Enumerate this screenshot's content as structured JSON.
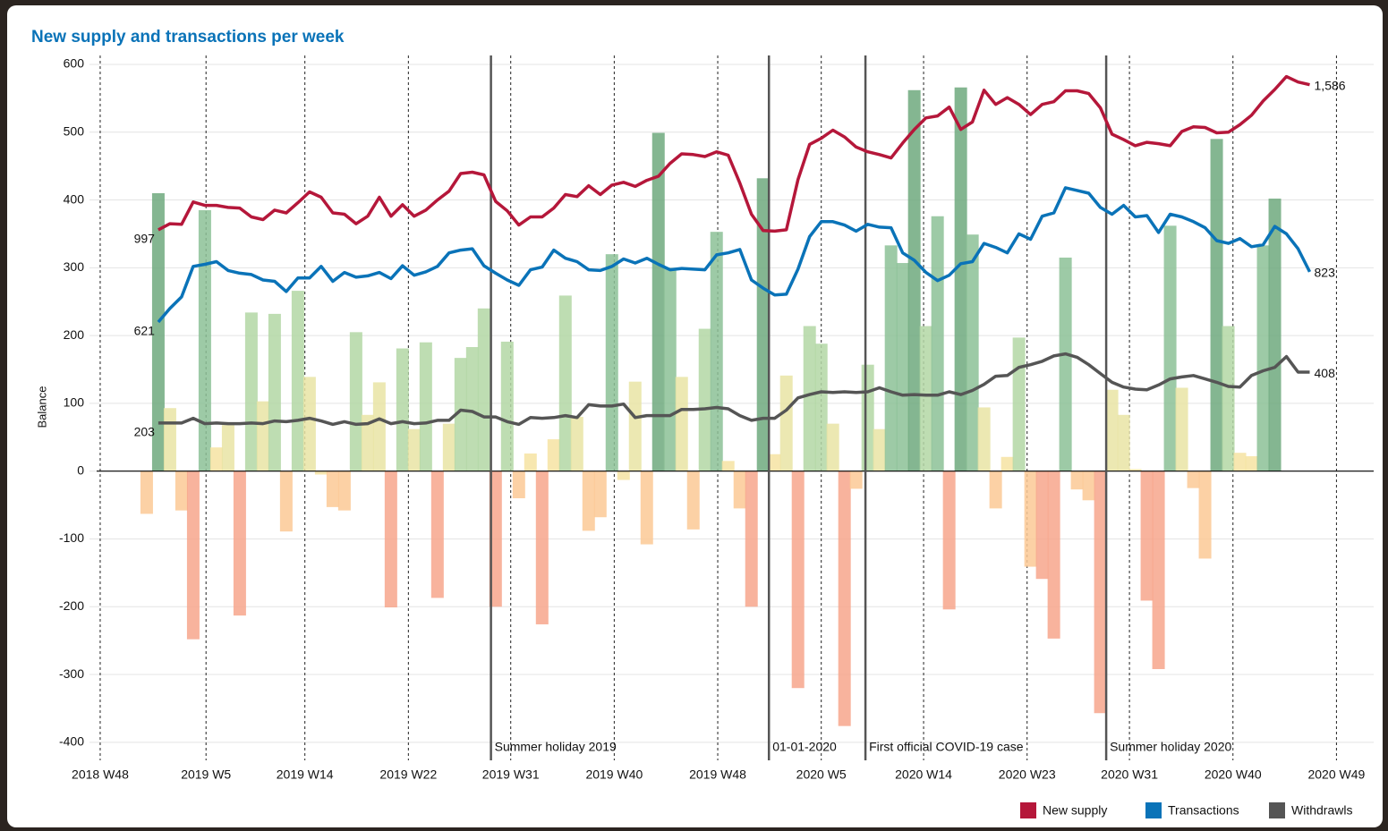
{
  "chart_data": {
    "type": "combo",
    "title": "New supply and transactions per week",
    "y_label": "Balance",
    "ylim": [
      -420,
      610
    ],
    "yticks": [
      -400,
      -300,
      -200,
      -100,
      0,
      100,
      200,
      300,
      400,
      500,
      600
    ],
    "xlim": [
      -0.92,
      109.5
    ],
    "xticks": [
      {
        "value": 0,
        "label": "2018 W48"
      },
      {
        "value": 9.1,
        "label": "2019 W5"
      },
      {
        "value": 17.6,
        "label": "2019 W14"
      },
      {
        "value": 26.5,
        "label": "2019 W22"
      },
      {
        "value": 35.3,
        "label": "2019 W31"
      },
      {
        "value": 44.2,
        "label": "2019 W40"
      },
      {
        "value": 53.1,
        "label": "2019 W48"
      },
      {
        "value": 62,
        "label": "2020 W5"
      },
      {
        "value": 70.8,
        "label": "2020 W14"
      },
      {
        "value": 79.7,
        "label": "2020 W23"
      },
      {
        "value": 88.5,
        "label": "2020 W31"
      },
      {
        "value": 97.4,
        "label": "2020 W40"
      },
      {
        "value": 106.3,
        "label": "2020 W49"
      }
    ],
    "grid": true,
    "events": [
      {
        "x": 33.6,
        "label": "Summer holiday 2019"
      },
      {
        "x": 57.5,
        "label": "01-01-2020"
      },
      {
        "x": 65.8,
        "label": "First official COVID-19 case"
      },
      {
        "x": 86.5,
        "label": "Summer holiday 2020"
      }
    ],
    "x": [
      5,
      6,
      7,
      8,
      9,
      10,
      11,
      12,
      13,
      14,
      15,
      16,
      17,
      18,
      19,
      20,
      21,
      22,
      23,
      24,
      25,
      26,
      27,
      28,
      29,
      30,
      31,
      32,
      33,
      34,
      35,
      36,
      37,
      38,
      39,
      40,
      41,
      42,
      43,
      44,
      45,
      46,
      47,
      48,
      49,
      50,
      51,
      52,
      53,
      54,
      55,
      56,
      57,
      58,
      59,
      60,
      61,
      62,
      63,
      64,
      65,
      66,
      67,
      68,
      69,
      70,
      71,
      72,
      73,
      74,
      75,
      76,
      77,
      78,
      79,
      80,
      81,
      82,
      83,
      84,
      85,
      86,
      87,
      88,
      89,
      90,
      91,
      92,
      93,
      94,
      95,
      96,
      97,
      98,
      99,
      100,
      101,
      102,
      103,
      104
    ],
    "series": [
      {
        "type": "bar",
        "x": [
          4,
          5,
          6,
          7,
          8,
          9,
          10,
          11,
          12,
          13,
          14,
          15,
          16,
          17,
          18,
          19,
          20,
          21,
          22,
          23,
          24,
          25,
          26,
          27,
          28,
          29,
          30,
          31,
          32,
          33,
          34,
          35,
          36,
          37,
          38,
          39,
          40,
          41,
          42,
          43,
          44,
          45,
          46,
          47,
          48,
          49,
          50,
          51,
          52,
          53,
          54,
          55,
          56,
          57,
          58,
          59,
          60,
          61,
          62,
          63,
          64,
          65,
          66,
          67,
          68,
          69,
          70,
          71,
          72,
          73,
          74,
          75,
          76,
          77,
          78,
          79,
          80,
          81,
          82,
          83,
          84,
          85,
          86,
          87,
          88,
          89,
          90,
          91,
          92,
          93,
          94,
          95,
          96,
          97,
          98,
          99,
          100,
          101
        ],
        "values": [
          -63,
          410,
          93,
          -58,
          -248,
          385,
          35,
          68,
          -213,
          234,
          103,
          232,
          -89,
          266,
          139,
          -5,
          -53,
          -58,
          205,
          83,
          131,
          -201,
          181,
          62,
          190,
          -187,
          70,
          167,
          183,
          240,
          -200,
          191,
          -40,
          26,
          -226,
          47,
          259,
          80,
          -88,
          -68,
          320,
          -13,
          132,
          -108,
          499,
          300,
          139,
          -86,
          210,
          353,
          15,
          -55,
          -200,
          432,
          25,
          141,
          -320,
          214,
          188,
          70,
          -376,
          -26,
          157,
          62,
          333,
          307,
          562,
          214,
          376,
          -204,
          566,
          349,
          94,
          -55,
          21,
          197,
          -141,
          -159,
          -247,
          315,
          -27,
          -43,
          -357,
          120,
          83,
          3,
          -191,
          -292,
          362,
          123,
          -25,
          -129,
          490,
          214,
          27,
          22,
          333,
          402
        ],
        "colors": [
          "#fcc995",
          "#6fa97e",
          "#e9e4a5",
          "#fcc995",
          "#f7a68c",
          "#8cc196",
          "#f6e3a2",
          "#e9e4a5",
          "#f7a68c",
          "#b3d7a4",
          "#e9e4a5",
          "#b3d7a4",
          "#fcc995",
          "#b3d7a4",
          "#e9e4a5",
          "#f6e3a2",
          "#fcc995",
          "#fcc995",
          "#b3d7a4",
          "#e9e4a5",
          "#e9e4a5",
          "#f7a68c",
          "#b3d7a4",
          "#e9e4a5",
          "#b3d7a4",
          "#f7a68c",
          "#e9e4a5",
          "#b3d7a4",
          "#b3d7a4",
          "#b3d7a4",
          "#f7a68c",
          "#b3d7a4",
          "#fcc995",
          "#f6e3a2",
          "#f7a68c",
          "#f6e3a2",
          "#b3d7a4",
          "#e9e4a5",
          "#fcc995",
          "#fcc995",
          "#8cc196",
          "#f6e3a2",
          "#e9e4a5",
          "#fcc995",
          "#6fa97e",
          "#8cc196",
          "#e9e4a5",
          "#fcc995",
          "#b3d7a4",
          "#8cc196",
          "#f6e3a2",
          "#fcc995",
          "#f7a68c",
          "#6fa97e",
          "#f6e3a2",
          "#e9e4a5",
          "#f7a68c",
          "#b3d7a4",
          "#b3d7a4",
          "#e9e4a5",
          "#f7a68c",
          "#fcc995",
          "#b3d7a4",
          "#e9e4a5",
          "#8cc196",
          "#8cc196",
          "#6fa97e",
          "#b3d7a4",
          "#8cc196",
          "#f7a68c",
          "#6fa97e",
          "#8cc196",
          "#e9e4a5",
          "#fcc995",
          "#f6e3a2",
          "#b3d7a4",
          "#fcc995",
          "#f7a68c",
          "#f7a68c",
          "#8cc196",
          "#fcc995",
          "#fcc995",
          "#f7a68c",
          "#e9e4a5",
          "#e9e4a5",
          "#f6e3a2",
          "#f7a68c",
          "#f7a68c",
          "#8cc196",
          "#e9e4a5",
          "#fcc995",
          "#fcc995",
          "#6fa97e",
          "#b3d7a4",
          "#f6e3a2",
          "#f6e3a2",
          "#8cc196",
          "#6fa97e"
        ]
      },
      {
        "type": "line",
        "name": "New supply",
        "color": "#b5173a",
        "start_label": "997",
        "end_label": "1,586",
        "values": [
          356,
          365,
          364,
          397,
          392,
          392,
          389,
          388,
          375,
          371,
          385,
          381,
          396,
          412,
          404,
          381,
          379,
          365,
          376,
          404,
          376,
          393,
          376,
          385,
          400,
          413,
          439,
          441,
          437,
          398,
          384,
          363,
          375,
          375,
          388,
          408,
          405,
          421,
          408,
          422,
          426,
          420,
          429,
          435,
          454,
          468,
          467,
          464,
          471,
          466,
          425,
          379,
          355,
          354,
          356,
          430,
          482,
          491,
          503,
          493,
          478,
          471,
          467,
          462,
          484,
          504,
          521,
          524,
          537,
          504,
          515,
          562,
          541,
          551,
          541,
          526,
          541,
          545,
          561,
          561,
          557,
          536,
          497,
          489,
          480,
          485,
          483,
          480,
          501,
          508,
          507,
          499,
          500,
          511,
          525,
          546,
          563,
          582,
          574,
          570
        ]
      },
      {
        "type": "line",
        "name": "Transactions",
        "color": "#0a73b8",
        "start_label": "621",
        "end_label": "823",
        "values": [
          220,
          240,
          257,
          302,
          305,
          309,
          296,
          292,
          290,
          282,
          280,
          265,
          285,
          285,
          302,
          280,
          293,
          286,
          288,
          293,
          284,
          303,
          289,
          294,
          302,
          322,
          326,
          328,
          303,
          292,
          282,
          274,
          297,
          301,
          326,
          314,
          309,
          297,
          296,
          302,
          313,
          307,
          314,
          305,
          297,
          299,
          298,
          297,
          319,
          322,
          327,
          282,
          270,
          260,
          261,
          298,
          346,
          368,
          368,
          363,
          354,
          364,
          360,
          359,
          322,
          311,
          293,
          281,
          289,
          306,
          309,
          336,
          330,
          322,
          350,
          342,
          376,
          381,
          418,
          414,
          410,
          389,
          379,
          392,
          375,
          377,
          352,
          379,
          375,
          368,
          359,
          340,
          336,
          343,
          331,
          334,
          361,
          350,
          328,
          294
        ]
      },
      {
        "type": "line",
        "name": "Withdrawls",
        "color": "#555555",
        "start_label": "203",
        "end_label": "408",
        "values": [
          71,
          71,
          71,
          78,
          70,
          71,
          70,
          70,
          71,
          70,
          74,
          73,
          75,
          78,
          74,
          69,
          73,
          69,
          70,
          77,
          70,
          73,
          70,
          71,
          75,
          75,
          90,
          88,
          80,
          80,
          73,
          69,
          79,
          78,
          79,
          82,
          79,
          98,
          96,
          96,
          99,
          79,
          82,
          82,
          82,
          91,
          91,
          92,
          94,
          92,
          82,
          75,
          78,
          78,
          90,
          108,
          113,
          117,
          116,
          117,
          116,
          117,
          123,
          117,
          112,
          113,
          112,
          112,
          117,
          113,
          119,
          128,
          140,
          141,
          153,
          157,
          162,
          170,
          173,
          168,
          157,
          144,
          131,
          124,
          121,
          120,
          127,
          136,
          139,
          141,
          136,
          131,
          125,
          124,
          141,
          148,
          153,
          169,
          146,
          146
        ]
      }
    ]
  }
}
